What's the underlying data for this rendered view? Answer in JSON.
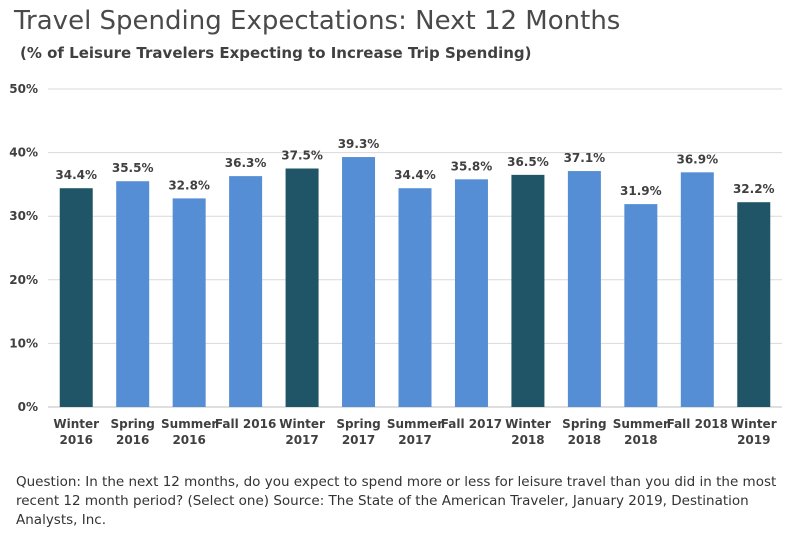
{
  "title": "Travel Spending Expectations: Next 12 Months",
  "subtitle": "(% of Leisure Travelers Expecting to Increase Trip Spending)",
  "footnote": "Question:  In the next 12 months, do you expect to spend more or less for leisure travel than you did in the most recent 12 month period? (Select one)  Source: The State of the American Traveler, January 2019, Destination Analysts, Inc.",
  "colors": {
    "winter": "#1f5566",
    "other": "#558ed5",
    "grid": "#d9d9d9",
    "axis": "#bfbfbf"
  },
  "chart_data": {
    "type": "bar",
    "title": "Travel Spending Expectations: Next 12 Months",
    "subtitle": "(% of Leisure Travelers Expecting to Increase Trip Spending)",
    "categories": [
      [
        "Winter",
        "2016"
      ],
      [
        "Spring",
        "2016"
      ],
      [
        "Summer",
        "2016"
      ],
      [
        "Fall 2016"
      ],
      [
        "Winter",
        "2017"
      ],
      [
        "Spring",
        "2017"
      ],
      [
        "Summer",
        "2017"
      ],
      [
        "Fall 2017"
      ],
      [
        "Winter",
        "2018"
      ],
      [
        "Spring",
        "2018"
      ],
      [
        "Summer",
        "2018"
      ],
      [
        "Fall 2018"
      ],
      [
        "Winter",
        "2019"
      ]
    ],
    "values": [
      34.4,
      35.5,
      32.8,
      36.3,
      37.5,
      39.3,
      34.4,
      35.8,
      36.5,
      37.1,
      31.9,
      36.9,
      32.2
    ],
    "data_labels": [
      "34.4%",
      "35.5%",
      "32.8%",
      "36.3%",
      "37.5%",
      "39.3%",
      "34.4%",
      "35.8%",
      "36.5%",
      "37.1%",
      "31.9%",
      "36.9%",
      "32.2%"
    ],
    "is_winter": [
      true,
      false,
      false,
      false,
      true,
      false,
      false,
      false,
      true,
      false,
      false,
      false,
      true
    ],
    "ylim": [
      0,
      50
    ],
    "yticks": [
      0,
      10,
      20,
      30,
      40,
      50
    ],
    "ytick_labels": [
      "0%",
      "10%",
      "20%",
      "30%",
      "40%",
      "50%"
    ],
    "grid": true,
    "legend": "none"
  }
}
